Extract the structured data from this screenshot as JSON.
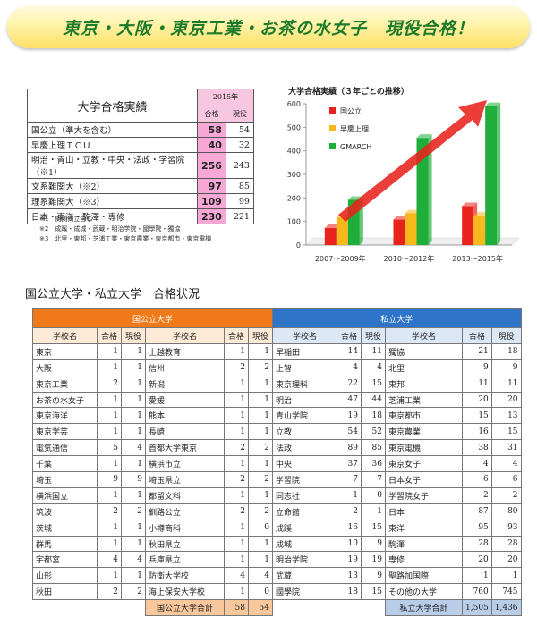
{
  "banner": {
    "title": "東京・大阪・東京工業・お茶の水女子　現役合格！"
  },
  "results": {
    "title": "大学合格実績",
    "year": "2015年",
    "col_pass": "合格",
    "col_current": "現役",
    "rows": [
      {
        "name": "国公立（準大を含む）",
        "pass": "58",
        "current": "54"
      },
      {
        "name": "早慶上理ＩＣＵ",
        "pass": "40",
        "current": "32"
      },
      {
        "name": "明治・青山・立教・中央・法政・学習院（※1）",
        "pass": "256",
        "current": "243"
      },
      {
        "name": "文系難関大（※2）",
        "pass": "97",
        "current": "85"
      },
      {
        "name": "理系難関大（※3）",
        "pass": "109",
        "current": "99"
      },
      {
        "name": "日本・東洋・駒澤・専修",
        "pass": "230",
        "current": "221"
      }
    ],
    "notes": [
      "※1　関関同立含む",
      "※2　成蹊・成城・武蔵・明治学院・國學院・獨協",
      "※3　北里・東邦・芝浦工業・東京農業・東京都市・東京電機"
    ]
  },
  "chart_data": {
    "type": "bar",
    "title": "大学合格実績（３年ごとの推移）",
    "categories": [
      "2007〜2009年",
      "2010〜2012年",
      "2013〜2015年"
    ],
    "ylim": [
      0,
      600
    ],
    "yticks": [
      "0",
      "100",
      "200",
      "300",
      "400",
      "500",
      "600"
    ],
    "series": [
      {
        "name": "国公立",
        "values": [
          72,
          108,
          165
        ],
        "color": "#e8231e"
      },
      {
        "name": "早慶上理",
        "values": [
          118,
          135,
          125
        ],
        "color": "#f7b81b"
      },
      {
        "name": "GMARCH",
        "values": [
          192,
          455,
          590
        ],
        "color": "#1fae3a"
      }
    ],
    "legend": "top-left",
    "grid": false
  },
  "section": {
    "title": "国公立大学・私立大学　合格状況"
  },
  "table": {
    "national_header": "国公立大学",
    "private_header": "私立大学",
    "col_school": "学校名",
    "col_pass": "合格",
    "col_current": "現役",
    "rows": [
      [
        "東京",
        "1",
        "1",
        "上越教育",
        "1",
        "1",
        "早稲田",
        "14",
        "11",
        "獨協",
        "21",
        "18"
      ],
      [
        "大阪",
        "1",
        "1",
        "信州",
        "2",
        "2",
        "上智",
        "4",
        "4",
        "北里",
        "9",
        "9"
      ],
      [
        "東京工業",
        "2",
        "1",
        "新潟",
        "1",
        "1",
        "東京理科",
        "22",
        "15",
        "東邦",
        "11",
        "11"
      ],
      [
        "お茶の水女子",
        "1",
        "1",
        "愛媛",
        "1",
        "1",
        "明治",
        "47",
        "44",
        "芝浦工業",
        "20",
        "20"
      ],
      [
        "東京海洋",
        "1",
        "1",
        "熊本",
        "1",
        "1",
        "青山学院",
        "19",
        "18",
        "東京都市",
        "15",
        "13"
      ],
      [
        "東京学芸",
        "1",
        "1",
        "長崎",
        "1",
        "1",
        "立教",
        "54",
        "52",
        "東京農業",
        "16",
        "15"
      ],
      [
        "電気通信",
        "5",
        "4",
        "首都大学東京",
        "2",
        "2",
        "法政",
        "89",
        "85",
        "東京電機",
        "38",
        "31"
      ],
      [
        "千葉",
        "1",
        "1",
        "横浜市立",
        "1",
        "1",
        "中央",
        "37",
        "36",
        "東京女子",
        "4",
        "4"
      ],
      [
        "埼玉",
        "9",
        "9",
        "埼玉県立",
        "2",
        "2",
        "学習院",
        "7",
        "7",
        "日本女子",
        "6",
        "6"
      ],
      [
        "横浜国立",
        "1",
        "1",
        "都留文科",
        "1",
        "1",
        "同志社",
        "1",
        "0",
        "学習院女子",
        "2",
        "2"
      ],
      [
        "筑波",
        "2",
        "2",
        "釧路公立",
        "2",
        "2",
        "立命館",
        "2",
        "1",
        "日本",
        "87",
        "80"
      ],
      [
        "茨城",
        "1",
        "1",
        "小樽商科",
        "1",
        "0",
        "成蹊",
        "16",
        "15",
        "東洋",
        "95",
        "93"
      ],
      [
        "群馬",
        "1",
        "1",
        "秋田県立",
        "1",
        "1",
        "成城",
        "10",
        "9",
        "駒澤",
        "28",
        "28"
      ],
      [
        "宇都宮",
        "4",
        "4",
        "兵庫県立",
        "1",
        "1",
        "明治学院",
        "19",
        "19",
        "専修",
        "20",
        "20"
      ],
      [
        "山形",
        "1",
        "1",
        "防衛大学校",
        "4",
        "4",
        "武蔵",
        "13",
        "9",
        "聖路加国際",
        "1",
        "1"
      ],
      [
        "秋田",
        "2",
        "2",
        "海上保安大学校",
        "1",
        "0",
        "國學院",
        "18",
        "15",
        "その他の大学",
        "760",
        "745"
      ]
    ],
    "national_total": {
      "label": "国公立大学合計",
      "pass": "58",
      "current": "54"
    },
    "private_total": {
      "label": "私立大学合計",
      "pass": "1,505",
      "current": "1,436"
    }
  }
}
